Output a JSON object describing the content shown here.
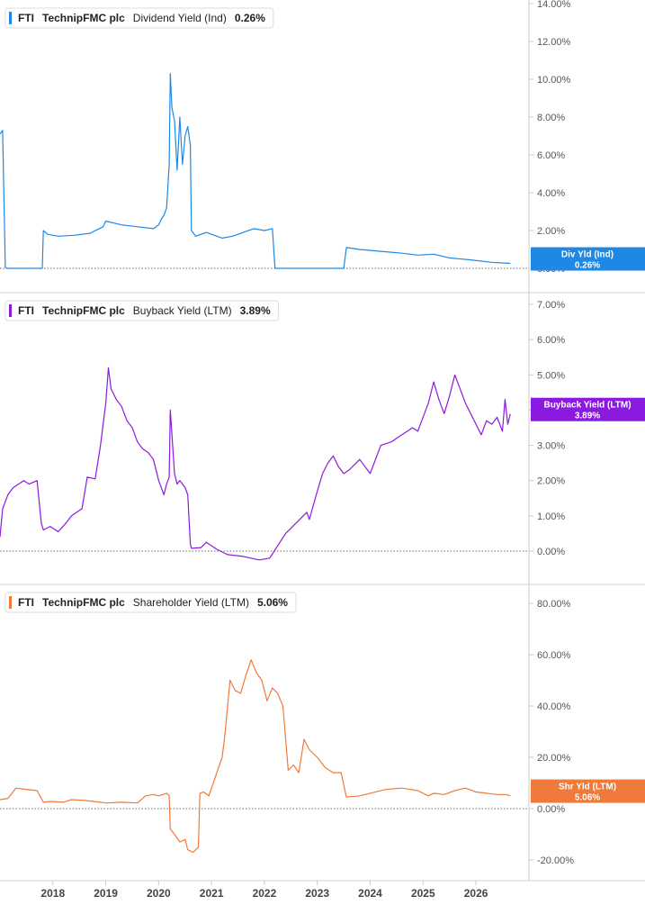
{
  "chart_data": [
    {
      "type": "line",
      "legend": {
        "ticker": "FTI",
        "company": "TechnipFMC plc",
        "metric": "Dividend Yield (Ind)",
        "value": "0.26%"
      },
      "tag": {
        "line1": "Div Yld (Ind)",
        "line2": "0.26%"
      },
      "color": "#1e88e5",
      "ylim": [
        0,
        14
      ],
      "yticks": [
        0,
        2,
        4,
        6,
        8,
        10,
        12,
        14
      ],
      "tick_labels": [
        "0.00%",
        "2.00%",
        "4.00%",
        "6.00%",
        "8.00%",
        "10.00%",
        "12.00%",
        "14.00%"
      ],
      "x": [
        2017.0,
        2017.05,
        2017.1,
        2017.15,
        2017.8,
        2017.82,
        2017.9,
        2018.1,
        2018.4,
        2018.7,
        2018.95,
        2019.0,
        2019.3,
        2019.6,
        2019.9,
        2020.0,
        2020.05,
        2020.1,
        2020.15,
        2020.2,
        2020.22,
        2020.25,
        2020.3,
        2020.35,
        2020.4,
        2020.45,
        2020.5,
        2020.55,
        2020.6,
        2020.62,
        2020.7,
        2020.9,
        2021.0,
        2021.2,
        2021.4,
        2021.6,
        2021.8,
        2022.0,
        2022.15,
        2022.2,
        2023.5,
        2023.55,
        2023.8,
        2024.2,
        2024.6,
        2024.9,
        2025.2,
        2025.5,
        2025.9,
        2026.3,
        2026.65
      ],
      "y": [
        7.1,
        7.3,
        0.05,
        0.0,
        0.0,
        2.0,
        1.8,
        1.7,
        1.75,
        1.85,
        2.2,
        2.5,
        2.3,
        2.2,
        2.1,
        2.3,
        2.6,
        2.8,
        3.2,
        5.5,
        10.3,
        8.5,
        7.8,
        5.2,
        8.0,
        5.5,
        7.0,
        7.5,
        6.5,
        2.0,
        1.7,
        1.9,
        1.8,
        1.6,
        1.7,
        1.9,
        2.1,
        2.0,
        2.1,
        0.0,
        0.0,
        1.1,
        1.0,
        0.9,
        0.8,
        0.7,
        0.75,
        0.55,
        0.45,
        0.32,
        0.26
      ]
    },
    {
      "type": "line",
      "legend": {
        "ticker": "FTI",
        "company": "TechnipFMC plc",
        "metric": "Buyback Yield (LTM)",
        "value": "3.89%"
      },
      "tag": {
        "line1": "Buyback Yield (LTM)",
        "line2": "3.89%"
      },
      "color": "#8a1ae0",
      "ylim": [
        -0.3,
        7.2
      ],
      "yticks": [
        0,
        1,
        2,
        3,
        4,
        5,
        6,
        7
      ],
      "tick_labels": [
        "0.00%",
        "1.00%",
        "2.00%",
        "3.00%",
        "4.00%",
        "5.00%",
        "6.00%",
        "7.00%"
      ],
      "x": [
        2017.0,
        2017.05,
        2017.15,
        2017.25,
        2017.35,
        2017.45,
        2017.55,
        2017.7,
        2017.78,
        2017.82,
        2017.95,
        2018.1,
        2018.25,
        2018.35,
        2018.45,
        2018.55,
        2018.65,
        2018.8,
        2018.9,
        2019.0,
        2019.05,
        2019.1,
        2019.2,
        2019.3,
        2019.4,
        2019.5,
        2019.6,
        2019.7,
        2019.8,
        2019.9,
        2020.0,
        2020.1,
        2020.15,
        2020.2,
        2020.22,
        2020.3,
        2020.35,
        2020.4,
        2020.5,
        2020.55,
        2020.6,
        2020.62,
        2020.8,
        2020.9,
        2021.0,
        2021.1,
        2021.3,
        2021.6,
        2021.9,
        2022.1,
        2022.4,
        2022.8,
        2022.85,
        2023.0,
        2023.1,
        2023.2,
        2023.3,
        2023.4,
        2023.5,
        2023.6,
        2023.8,
        2024.0,
        2024.2,
        2024.4,
        2024.6,
        2024.8,
        2024.9,
        2025.0,
        2025.1,
        2025.2,
        2025.3,
        2025.4,
        2025.5,
        2025.6,
        2025.7,
        2025.8,
        2025.9,
        2026.0,
        2026.1,
        2026.2,
        2026.3,
        2026.4,
        2026.5,
        2026.55,
        2026.6,
        2026.65
      ],
      "y": [
        0.4,
        1.2,
        1.6,
        1.8,
        1.9,
        2.0,
        1.9,
        2.0,
        0.8,
        0.6,
        0.7,
        0.55,
        0.8,
        1.0,
        1.1,
        1.2,
        2.1,
        2.05,
        3.0,
        4.2,
        5.2,
        4.6,
        4.3,
        4.1,
        3.7,
        3.5,
        3.1,
        2.9,
        2.8,
        2.6,
        2.0,
        1.6,
        1.9,
        2.1,
        4.0,
        2.2,
        1.9,
        2.0,
        1.8,
        1.6,
        0.2,
        0.08,
        0.1,
        0.25,
        0.15,
        0.05,
        -0.1,
        -0.15,
        -0.25,
        -0.2,
        0.5,
        1.1,
        0.9,
        1.7,
        2.2,
        2.5,
        2.7,
        2.4,
        2.2,
        2.3,
        2.6,
        2.2,
        3.0,
        3.1,
        3.3,
        3.5,
        3.4,
        3.8,
        4.2,
        4.8,
        4.3,
        3.9,
        4.4,
        5.0,
        4.6,
        4.2,
        3.9,
        3.6,
        3.3,
        3.7,
        3.6,
        3.8,
        3.4,
        4.3,
        3.6,
        3.89
      ]
    },
    {
      "type": "line",
      "legend": {
        "ticker": "FTI",
        "company": "TechnipFMC plc",
        "metric": "Shareholder Yield (LTM)",
        "value": "5.06%"
      },
      "tag": {
        "line1": "Shr Yld (LTM)",
        "line2": "5.06%"
      },
      "color": "#f07a3a",
      "ylim": [
        -26,
        86
      ],
      "yticks": [
        -20,
        0,
        20,
        40,
        60,
        80
      ],
      "tick_labels": [
        "-20.00%",
        "0.00%",
        "20.00%",
        "40.00%",
        "60.00%",
        "80.00%"
      ],
      "x": [
        2017.0,
        2017.15,
        2017.3,
        2017.5,
        2017.7,
        2017.82,
        2017.95,
        2018.2,
        2018.35,
        2018.6,
        2018.9,
        2019.0,
        2019.3,
        2019.6,
        2019.75,
        2019.9,
        2020.0,
        2020.15,
        2020.2,
        2020.22,
        2020.3,
        2020.4,
        2020.5,
        2020.55,
        2020.65,
        2020.75,
        2020.78,
        2020.85,
        2020.95,
        2021.1,
        2021.2,
        2021.25,
        2021.35,
        2021.45,
        2021.55,
        2021.65,
        2021.75,
        2021.85,
        2021.95,
        2022.05,
        2022.15,
        2022.25,
        2022.35,
        2022.45,
        2022.55,
        2022.65,
        2022.75,
        2022.85,
        2023.0,
        2023.15,
        2023.3,
        2023.45,
        2023.55,
        2023.8,
        2024.0,
        2024.3,
        2024.6,
        2024.9,
        2025.1,
        2025.2,
        2025.4,
        2025.6,
        2025.8,
        2026.0,
        2026.2,
        2026.4,
        2026.55,
        2026.65
      ],
      "y": [
        3.5,
        4.0,
        8.0,
        7.5,
        7.0,
        2.5,
        2.8,
        2.5,
        3.5,
        3.2,
        2.5,
        2.2,
        2.5,
        2.2,
        5.0,
        5.5,
        5.0,
        6.0,
        5.0,
        -8.0,
        -10.0,
        -13.0,
        -12.0,
        -16.0,
        -17.0,
        -15.0,
        6.0,
        6.5,
        5.0,
        14.0,
        20.0,
        28.0,
        50.0,
        46.0,
        45.0,
        52.0,
        58.0,
        53.0,
        50.0,
        42.0,
        47.0,
        45.0,
        40.0,
        15.0,
        17.0,
        14.0,
        27.0,
        23.0,
        20.0,
        16.0,
        14.0,
        14.0,
        4.5,
        5.0,
        6.0,
        7.5,
        8.0,
        7.0,
        5.0,
        6.0,
        5.5,
        7.0,
        8.0,
        6.5,
        6.0,
        5.5,
        5.5,
        5.06
      ]
    }
  ],
  "x_axis": {
    "years": [
      2018,
      2019,
      2020,
      2021,
      2022,
      2023,
      2024,
      2025,
      2026
    ],
    "labels": [
      "2018",
      "2019",
      "2020",
      "2021",
      "2022",
      "2023",
      "2024",
      "2025",
      "2026"
    ]
  },
  "colors": {
    "grid": "#d0d0d0",
    "axis": "#c8c8c8",
    "zero_line": "#666666",
    "text": "#444444"
  }
}
